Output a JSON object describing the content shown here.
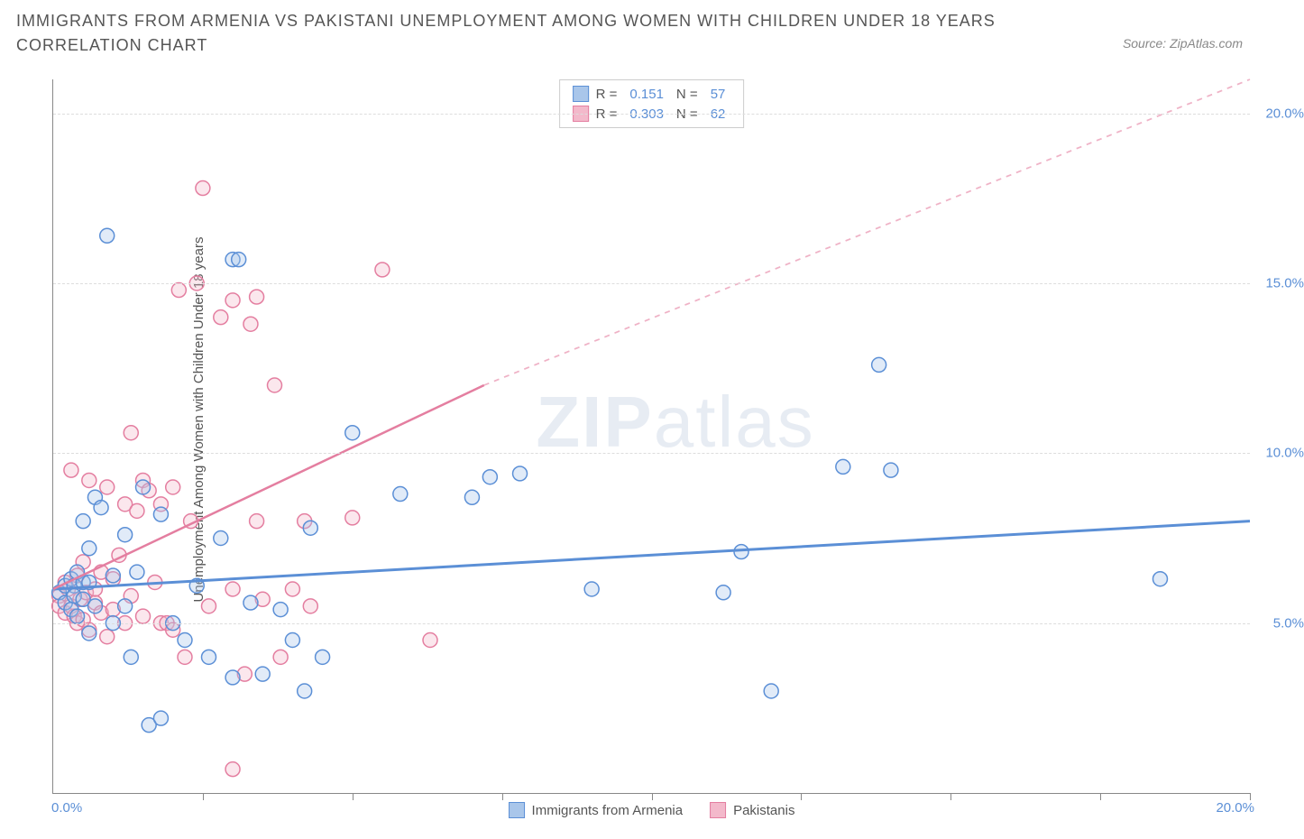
{
  "title": "IMMIGRANTS FROM ARMENIA VS PAKISTANI UNEMPLOYMENT AMONG WOMEN WITH CHILDREN UNDER 18 YEARS CORRELATION CHART",
  "source": "Source: ZipAtlas.com",
  "watermark_a": "ZIP",
  "watermark_b": "atlas",
  "chart": {
    "type": "scatter",
    "y_axis_title": "Unemployment Among Women with Children Under 18 years",
    "xlim": [
      0,
      20
    ],
    "ylim": [
      0,
      21
    ],
    "xtick_positions": [
      0,
      2.5,
      5,
      7.5,
      10,
      12.5,
      15,
      17.5,
      20
    ],
    "xtick_labels_shown": {
      "first": "0.0%",
      "last": "20.0%"
    },
    "yticks": [
      {
        "v": 5,
        "label": "5.0%"
      },
      {
        "v": 10,
        "label": "10.0%"
      },
      {
        "v": 15,
        "label": "15.0%"
      },
      {
        "v": 20,
        "label": "20.0%"
      }
    ],
    "background_color": "#ffffff",
    "grid_color": "#dddddd",
    "axis_color": "#888888",
    "marker_radius": 8,
    "marker_stroke_width": 1.5,
    "marker_fill_opacity": 0.35,
    "series": [
      {
        "id": "armenia",
        "label": "Immigrants from Armenia",
        "color_stroke": "#5b8fd6",
        "color_fill": "#a9c6ea",
        "R_label": "R =",
        "R": "0.151",
        "N_label": "N =",
        "N": "57",
        "trend": {
          "x1": 0,
          "y1": 6.0,
          "x2": 20,
          "y2": 8.0,
          "dash_after_x": 20,
          "width": 3
        },
        "points": [
          [
            0.1,
            5.9
          ],
          [
            0.2,
            6.1
          ],
          [
            0.2,
            5.6
          ],
          [
            0.3,
            6.3
          ],
          [
            0.3,
            5.4
          ],
          [
            0.35,
            6.1
          ],
          [
            0.35,
            5.8
          ],
          [
            0.4,
            6.5
          ],
          [
            0.4,
            5.2
          ],
          [
            0.5,
            5.7
          ],
          [
            0.5,
            8.0
          ],
          [
            0.5,
            6.2
          ],
          [
            0.6,
            6.2
          ],
          [
            0.6,
            4.7
          ],
          [
            0.6,
            7.2
          ],
          [
            0.7,
            5.5
          ],
          [
            0.7,
            8.7
          ],
          [
            0.8,
            8.4
          ],
          [
            0.9,
            16.4
          ],
          [
            1.0,
            5.0
          ],
          [
            1.0,
            6.4
          ],
          [
            1.2,
            5.5
          ],
          [
            1.2,
            7.6
          ],
          [
            1.3,
            4.0
          ],
          [
            1.4,
            6.5
          ],
          [
            1.5,
            9.0
          ],
          [
            1.6,
            2.0
          ],
          [
            1.8,
            2.2
          ],
          [
            1.8,
            8.2
          ],
          [
            2.0,
            5.0
          ],
          [
            2.2,
            4.5
          ],
          [
            2.4,
            6.1
          ],
          [
            2.6,
            4.0
          ],
          [
            2.8,
            7.5
          ],
          [
            3.0,
            3.4
          ],
          [
            3.0,
            15.7
          ],
          [
            3.1,
            15.7
          ],
          [
            3.3,
            5.6
          ],
          [
            3.5,
            3.5
          ],
          [
            3.8,
            5.4
          ],
          [
            4.0,
            4.5
          ],
          [
            4.2,
            3.0
          ],
          [
            4.3,
            7.8
          ],
          [
            4.5,
            4.0
          ],
          [
            5.0,
            10.6
          ],
          [
            5.8,
            8.8
          ],
          [
            7.0,
            8.7
          ],
          [
            7.3,
            9.3
          ],
          [
            7.8,
            9.4
          ],
          [
            9.0,
            6.0
          ],
          [
            11.2,
            5.9
          ],
          [
            11.5,
            7.1
          ],
          [
            12.0,
            3.0
          ],
          [
            13.2,
            9.6
          ],
          [
            13.8,
            12.6
          ],
          [
            14.0,
            9.5
          ],
          [
            18.5,
            6.3
          ]
        ]
      },
      {
        "id": "pakistani",
        "label": "Pakistanis",
        "color_stroke": "#e47ea0",
        "color_fill": "#f3b9cb",
        "R_label": "R =",
        "R": "0.303",
        "N_label": "N =",
        "N": "62",
        "trend": {
          "x1": 0,
          "y1": 6.0,
          "x2": 7.2,
          "y2": 12.0,
          "dash_after_x": 7.2,
          "dash_x2": 20,
          "dash_y2": 21,
          "width": 2.5
        },
        "points": [
          [
            0.1,
            5.8
          ],
          [
            0.1,
            5.5
          ],
          [
            0.2,
            6.2
          ],
          [
            0.2,
            5.3
          ],
          [
            0.25,
            6.0
          ],
          [
            0.3,
            9.5
          ],
          [
            0.3,
            5.5
          ],
          [
            0.35,
            5.2
          ],
          [
            0.4,
            6.4
          ],
          [
            0.4,
            5.0
          ],
          [
            0.45,
            5.7
          ],
          [
            0.5,
            6.8
          ],
          [
            0.5,
            5.1
          ],
          [
            0.55,
            5.9
          ],
          [
            0.6,
            4.8
          ],
          [
            0.6,
            9.2
          ],
          [
            0.7,
            5.6
          ],
          [
            0.7,
            6.0
          ],
          [
            0.8,
            5.3
          ],
          [
            0.8,
            6.5
          ],
          [
            0.9,
            4.6
          ],
          [
            0.9,
            9.0
          ],
          [
            1.0,
            6.3
          ],
          [
            1.0,
            5.4
          ],
          [
            1.1,
            7.0
          ],
          [
            1.2,
            5.0
          ],
          [
            1.2,
            8.5
          ],
          [
            1.3,
            5.8
          ],
          [
            1.3,
            10.6
          ],
          [
            1.4,
            8.3
          ],
          [
            1.5,
            9.2
          ],
          [
            1.5,
            5.2
          ],
          [
            1.6,
            8.9
          ],
          [
            1.7,
            6.2
          ],
          [
            1.8,
            8.5
          ],
          [
            1.8,
            5.0
          ],
          [
            1.9,
            5.0
          ],
          [
            2.0,
            9.0
          ],
          [
            2.0,
            4.8
          ],
          [
            2.1,
            14.8
          ],
          [
            2.2,
            4.0
          ],
          [
            2.3,
            8.0
          ],
          [
            2.4,
            15.0
          ],
          [
            2.5,
            17.8
          ],
          [
            2.6,
            5.5
          ],
          [
            2.8,
            14.0
          ],
          [
            3.0,
            6.0
          ],
          [
            3.0,
            14.5
          ],
          [
            3.2,
            3.5
          ],
          [
            3.3,
            13.8
          ],
          [
            3.4,
            14.6
          ],
          [
            3.5,
            5.7
          ],
          [
            3.7,
            12.0
          ],
          [
            3.8,
            4.0
          ],
          [
            4.0,
            6.0
          ],
          [
            4.2,
            8.0
          ],
          [
            4.3,
            5.5
          ],
          [
            5.0,
            8.1
          ],
          [
            5.5,
            15.4
          ],
          [
            6.3,
            4.5
          ],
          [
            3.0,
            0.7
          ],
          [
            3.4,
            8.0
          ]
        ]
      }
    ]
  },
  "bottom_legend": [
    {
      "label": "Immigrants from Armenia",
      "stroke": "#5b8fd6",
      "fill": "#a9c6ea"
    },
    {
      "label": "Pakistanis",
      "stroke": "#e47ea0",
      "fill": "#f3b9cb"
    }
  ]
}
